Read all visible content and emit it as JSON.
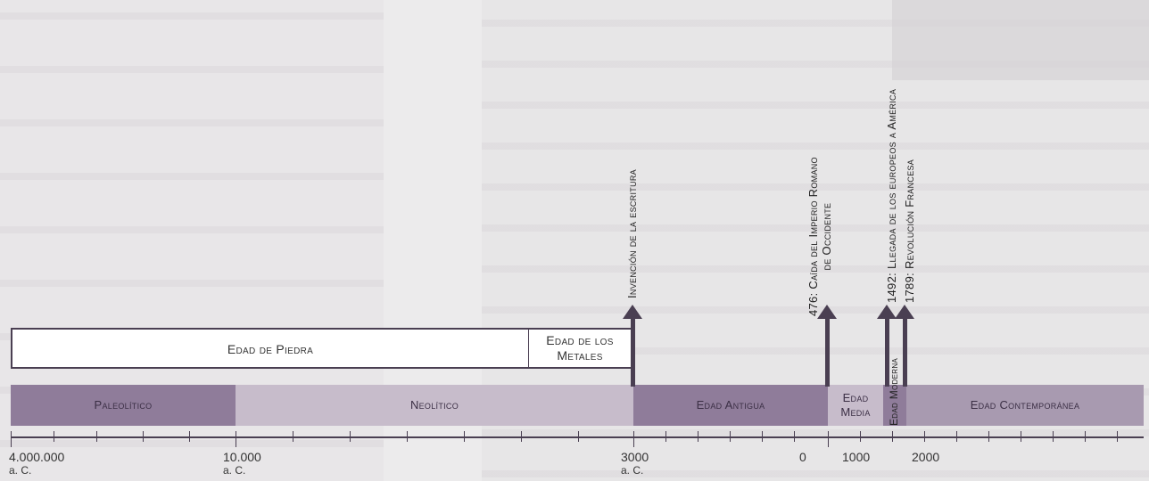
{
  "bands": {
    "stone_age": "Edad de Piedra",
    "metal_age_line1": "Edad de los",
    "metal_age_line2": "Metales"
  },
  "periods": {
    "paleolitico": "Paleolítico",
    "neolitico": "Neolítico",
    "antigua": "Edad Antigua",
    "media_line1": "Edad",
    "media_line2": "Media",
    "moderna_vertical": "Edad Moderna",
    "contemporanea": "Edad Contemporánea"
  },
  "axis": {
    "l1_value": "4.000.000",
    "l1_era": "a. C.",
    "l2_value": "10.000",
    "l2_era": "a. C.",
    "l3_value": "3000",
    "l3_era": "a. C.",
    "l4_value": "0",
    "l5_value": "1000",
    "l6_value": "2000"
  },
  "events": {
    "escritura": "Invención de la escritura",
    "roma_line1": "476: Caída del Imperio Romano",
    "roma_line2": "de Occidente",
    "america": "1492: Llegada de los europeos a América",
    "francesa": "1789: Revolución Francesa"
  },
  "colors": {
    "paleolitico": "#8f7c9a",
    "neolitico": "#c7bccb",
    "antigua": "#8f7c9a",
    "media": "#c7bccb",
    "contemporanea": "#a89ab0",
    "ink": "#4a3f52"
  }
}
